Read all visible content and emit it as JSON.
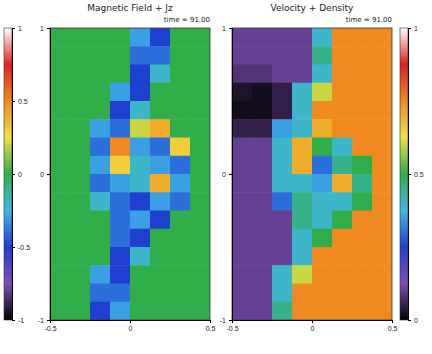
{
  "chart_data": [
    {
      "type": "heatmap",
      "title": "Magnetic Field + Jz",
      "subtitle": "time = 91.00",
      "xlim": [
        -0.5,
        0.5
      ],
      "xticks": [
        -0.5,
        0,
        0.5
      ],
      "ylim": [
        -1,
        1
      ],
      "yticks": [
        -1,
        0,
        1
      ],
      "colors": [
        "#000000",
        "#8050b8",
        "#1f3fd0",
        "#3fb8e8",
        "#2fae4a",
        "#f0e040",
        "#f08a20",
        "#e02020",
        "#ffffff"
      ],
      "colorbar_range": [
        -1,
        1
      ],
      "colorbar_ticks": [
        -1,
        -0.5,
        0,
        0.5,
        1
      ],
      "cells": [
        [
          0,
          0,
          0,
          0,
          -0.3,
          -0.5,
          0,
          0
        ],
        [
          0,
          0,
          0,
          0,
          -0.4,
          -0.4,
          0,
          0
        ],
        [
          0,
          0,
          0,
          0,
          -0.5,
          -0.2,
          0,
          0
        ],
        [
          0,
          0,
          0,
          -0.3,
          -0.5,
          0,
          0,
          0
        ],
        [
          0,
          0,
          0,
          -0.5,
          -0.2,
          0,
          0,
          0
        ],
        [
          0,
          0,
          -0.3,
          -0.4,
          0.2,
          0.4,
          0,
          0
        ],
        [
          0,
          0,
          -0.4,
          0.5,
          -0.3,
          -0.4,
          0.3,
          0
        ],
        [
          0,
          0,
          -0.3,
          0.3,
          -0.2,
          -0.3,
          -0.4,
          0
        ],
        [
          0,
          0,
          -0.4,
          -0.3,
          -0.2,
          0.4,
          -0.3,
          0
        ],
        [
          0,
          0,
          -0.2,
          -0.4,
          -0.5,
          -0.3,
          -0.4,
          0
        ],
        [
          0,
          0,
          0,
          -0.4,
          -0.3,
          -0.5,
          0,
          0
        ],
        [
          0,
          0,
          0,
          -0.4,
          -0.5,
          0,
          0,
          0
        ],
        [
          0,
          0,
          0,
          -0.5,
          -0.2,
          0,
          0,
          0
        ],
        [
          0,
          0,
          -0.3,
          -0.5,
          0,
          0,
          0,
          0
        ],
        [
          0,
          0,
          -0.4,
          -0.4,
          0,
          0,
          0,
          0
        ],
        [
          0,
          0,
          -0.5,
          -0.3,
          0,
          0,
          0,
          0
        ]
      ]
    },
    {
      "type": "heatmap",
      "title": "Velocity + Density",
      "subtitle": "time = 91.00",
      "xlim": [
        -0.5,
        0.5
      ],
      "xticks": [
        -0.5,
        0,
        0.5
      ],
      "ylim": [
        -1,
        1
      ],
      "yticks": [
        -1,
        0,
        1
      ],
      "colors": [
        "#000000",
        "#8050b8",
        "#1f3fd0",
        "#3fb8e8",
        "#2fae4a",
        "#f0e040",
        "#f08a20",
        "#e02020",
        "#ffffff"
      ],
      "colorbar_range": [
        0,
        1
      ],
      "colorbar_ticks": [
        0,
        0.5,
        1
      ],
      "cells": [
        [
          0.1,
          0.1,
          0.1,
          0.1,
          0.4,
          0.75,
          0.75,
          0.75
        ],
        [
          0.1,
          0.1,
          0.1,
          0.1,
          0.45,
          0.75,
          0.75,
          0.75
        ],
        [
          0.08,
          0.08,
          0.1,
          0.1,
          0.4,
          0.75,
          0.75,
          0.75
        ],
        [
          0.03,
          0.02,
          0.05,
          0.4,
          0.6,
          0.75,
          0.75,
          0.75
        ],
        [
          0.02,
          0.02,
          0.05,
          0.4,
          0.75,
          0.75,
          0.75,
          0.75
        ],
        [
          0.05,
          0.05,
          0.35,
          0.4,
          0.7,
          0.75,
          0.75,
          0.75
        ],
        [
          0.1,
          0.1,
          0.4,
          0.7,
          0.5,
          0.4,
          0.75,
          0.75
        ],
        [
          0.1,
          0.1,
          0.4,
          0.7,
          0.3,
          0.45,
          0.5,
          0.75
        ],
        [
          0.1,
          0.1,
          0.4,
          0.4,
          0.35,
          0.7,
          0.45,
          0.75
        ],
        [
          0.1,
          0.1,
          0.3,
          0.45,
          0.4,
          0.4,
          0.5,
          0.75
        ],
        [
          0.1,
          0.1,
          0.1,
          0.45,
          0.4,
          0.5,
          0.75,
          0.75
        ],
        [
          0.1,
          0.1,
          0.1,
          0.4,
          0.5,
          0.75,
          0.75,
          0.75
        ],
        [
          0.1,
          0.1,
          0.1,
          0.4,
          0.75,
          0.75,
          0.75,
          0.75
        ],
        [
          0.1,
          0.1,
          0.4,
          0.6,
          0.75,
          0.75,
          0.75,
          0.75
        ],
        [
          0.1,
          0.1,
          0.4,
          0.75,
          0.75,
          0.75,
          0.75,
          0.75
        ],
        [
          0.1,
          0.1,
          0.45,
          0.75,
          0.75,
          0.75,
          0.75,
          0.75
        ]
      ]
    }
  ]
}
